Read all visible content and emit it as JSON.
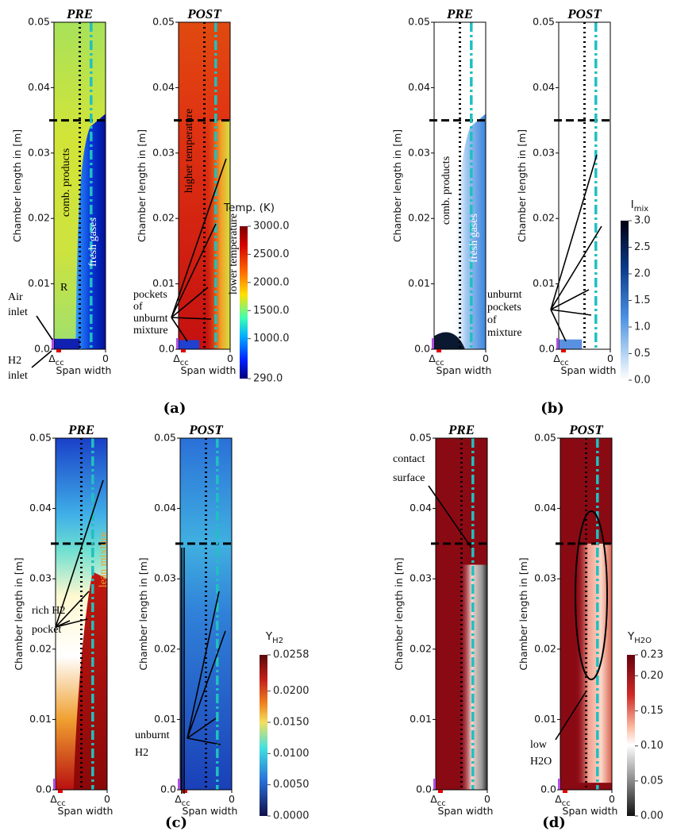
{
  "panels": [
    {
      "label": "(a)",
      "y_axis_label": "Chamber length in [m]",
      "y_ticks": [
        "0.0",
        "0.01",
        "0.02",
        "0.03",
        "0.04",
        "0.05"
      ],
      "x_axis_label": "Span width",
      "x_ticks": [
        {
          "main": "Δ",
          "sub": "cc"
        },
        "0"
      ],
      "subplots": [
        {
          "title": "PRE"
        },
        {
          "title": "POST"
        }
      ],
      "colorbar": {
        "title": {
          "main": "Temp. (K)"
        },
        "ticks": [
          "3000.0",
          "2500.0",
          "2000.0",
          "1500.0",
          "1000.0",
          "290.0"
        ]
      },
      "annotations": [
        {
          "lines": [
            "comb. products"
          ]
        },
        {
          "lines": [
            "fresh gases"
          ]
        },
        {
          "lines": [
            "R"
          ]
        },
        {
          "lines": [
            "Air",
            "inlet"
          ]
        },
        {
          "lines": [
            "H2",
            "inlet"
          ]
        },
        {
          "lines": [
            "higher temperature"
          ]
        },
        {
          "lines": [
            "lower temperature"
          ]
        },
        {
          "lines": [
            "pockets",
            "of",
            "unburnt",
            "mixture"
          ]
        }
      ]
    },
    {
      "label": "(b)",
      "y_axis_label": "Chamber length in [m]",
      "y_ticks": [
        "0.0",
        "0.01",
        "0.02",
        "0.03",
        "0.04",
        "0.05"
      ],
      "x_axis_label": "Span width",
      "x_ticks": [
        {
          "main": "Δ",
          "sub": "cc"
        },
        "0"
      ],
      "subplots": [
        {
          "title": "PRE"
        },
        {
          "title": "POST"
        }
      ],
      "colorbar": {
        "title": {
          "main": "I",
          "sub": "mix"
        },
        "ticks": [
          "3.0",
          "2.5",
          "2.0",
          "1.5",
          "1.0",
          "0.5",
          "0.0"
        ]
      },
      "annotations": [
        {
          "lines": [
            "comb. products"
          ]
        },
        {
          "lines": [
            "fresh gases"
          ]
        },
        {
          "lines": [
            "unburnt",
            "pockets",
            "of",
            "mixture"
          ]
        }
      ]
    },
    {
      "label": "(c)",
      "y_axis_label": "Chamber length in [m]",
      "y_ticks": [
        "0.0",
        "0.01",
        "0.02",
        "0.03",
        "0.04",
        "0.05"
      ],
      "x_axis_label": "Span width",
      "x_ticks": [
        {
          "main": "Δ",
          "sub": "cc"
        },
        "0"
      ],
      "subplots": [
        {
          "title": "PRE"
        },
        {
          "title": "POST"
        }
      ],
      "colorbar": {
        "title": {
          "main": "Y",
          "sub": "H2"
        },
        "ticks": [
          "0.0258",
          "0.0200",
          "0.0150",
          "0.0100",
          "0.0050",
          "0.0000"
        ]
      },
      "annotations": [
        {
          "lines": [
            "lean mixture"
          ]
        },
        {
          "lines": [
            "rich H2",
            "pocket"
          ]
        },
        {
          "lines": [
            "unburnt",
            "H2"
          ]
        }
      ]
    },
    {
      "label": "(d)",
      "y_axis_label": "Chamber length in [m]",
      "y_ticks": [
        "0.0",
        "0.01",
        "0.02",
        "0.03",
        "0.04",
        "0.05"
      ],
      "x_axis_label": "Span width",
      "x_ticks": [
        {
          "main": "Δ",
          "sub": "cc"
        },
        "0"
      ],
      "subplots": [
        {
          "title": "PRE"
        },
        {
          "title": "POST"
        }
      ],
      "colorbar": {
        "title": {
          "main": "Y",
          "sub": "H2O"
        },
        "ticks": [
          "0.23",
          "0.20",
          "0.15",
          "0.10",
          "0.05",
          "0.00"
        ]
      },
      "annotations": [
        {
          "lines": [
            "contact",
            "surface"
          ]
        },
        {
          "lines": [
            "low",
            "H2O"
          ]
        }
      ]
    }
  ]
}
